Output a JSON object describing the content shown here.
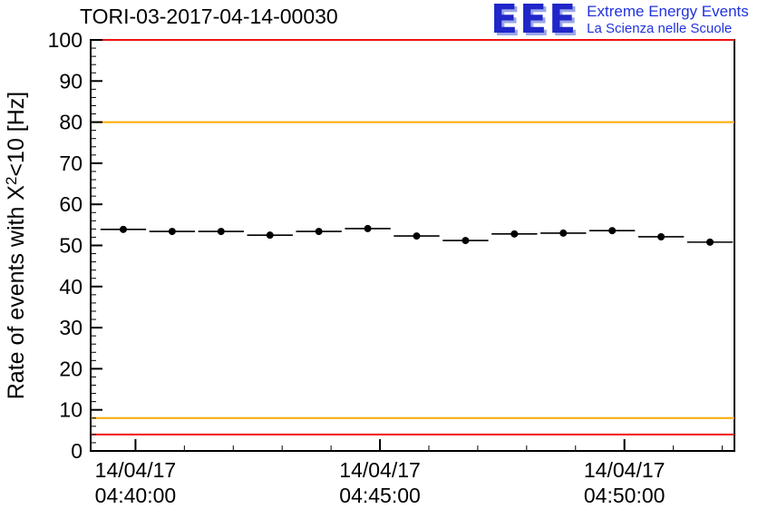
{
  "logo": {
    "text": "EEE",
    "line1": "Extreme Energy Events",
    "line2": "La Scienza nelle Scuole",
    "color": "#2026c9",
    "extrude_color": "#9aa6e6"
  },
  "chart_data": {
    "type": "scatter",
    "title": "TORI-03-2017-04-14-00030",
    "xlabel": "",
    "ylabel": "Rate of events with X²<10 [Hz]",
    "ylim": [
      0,
      100
    ],
    "y_major_step": 10,
    "y_minor_step": 2,
    "x_start": "04:39:05",
    "x_end": "04:52:15",
    "x_date_label": "14/04/17",
    "x_major_ticks": [
      "04:40:00",
      "04:45:00",
      "04:50:00"
    ],
    "x_minor_step_s": 60,
    "x_bin_halfwidth_s": 28,
    "y_error": 0.5,
    "grid": false,
    "legend": null,
    "marker": {
      "shape": "circle",
      "color": "#000000",
      "radius": 4
    },
    "threshold_lines": [
      {
        "value": 100,
        "color": "#ee1111",
        "meaning": "upper-alarm"
      },
      {
        "value": 80,
        "color": "#ffaa00",
        "meaning": "upper-warning"
      },
      {
        "value": 8,
        "color": "#ffaa00",
        "meaning": "lower-warning"
      },
      {
        "value": 4,
        "color": "#ee1111",
        "meaning": "lower-alarm"
      }
    ],
    "points": [
      {
        "time": "04:39:45",
        "rate": 53.9
      },
      {
        "time": "04:40:45",
        "rate": 53.4
      },
      {
        "time": "04:41:45",
        "rate": 53.4
      },
      {
        "time": "04:42:45",
        "rate": 52.5
      },
      {
        "time": "04:43:45",
        "rate": 53.4
      },
      {
        "time": "04:44:45",
        "rate": 54.1
      },
      {
        "time": "04:45:45",
        "rate": 52.3
      },
      {
        "time": "04:46:45",
        "rate": 51.2
      },
      {
        "time": "04:47:45",
        "rate": 52.8
      },
      {
        "time": "04:48:45",
        "rate": 53.0
      },
      {
        "time": "04:49:45",
        "rate": 53.6
      },
      {
        "time": "04:50:45",
        "rate": 52.1
      },
      {
        "time": "04:51:45",
        "rate": 50.8
      }
    ]
  }
}
